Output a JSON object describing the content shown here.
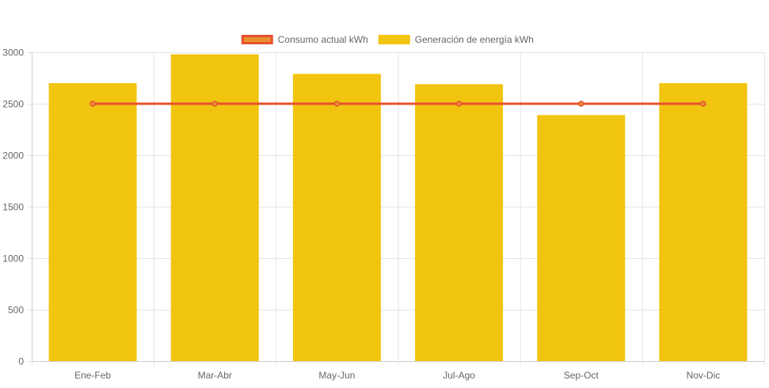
{
  "chart_data": {
    "type": "bar",
    "categories": [
      "Ene-Feb",
      "Mar-Abr",
      "May-Jun",
      "Jul-Ago",
      "Sep-Oct",
      "Nov-Dic"
    ],
    "series": [
      {
        "name": "Consumo actual kWh",
        "type": "line",
        "values": [
          2500,
          2500,
          2500,
          2500,
          2500,
          2500
        ],
        "color": "#e8512f",
        "fill": "#e8902f"
      },
      {
        "name": "Generación de energía kWh",
        "type": "bar",
        "values": [
          2700,
          2980,
          2790,
          2690,
          2390,
          2700
        ],
        "color": "#f1c40f"
      }
    ],
    "ylim": [
      0,
      3000
    ],
    "yticks": [
      0,
      500,
      1000,
      1500,
      2000,
      2500,
      3000
    ],
    "grid": true,
    "legend": "top"
  }
}
